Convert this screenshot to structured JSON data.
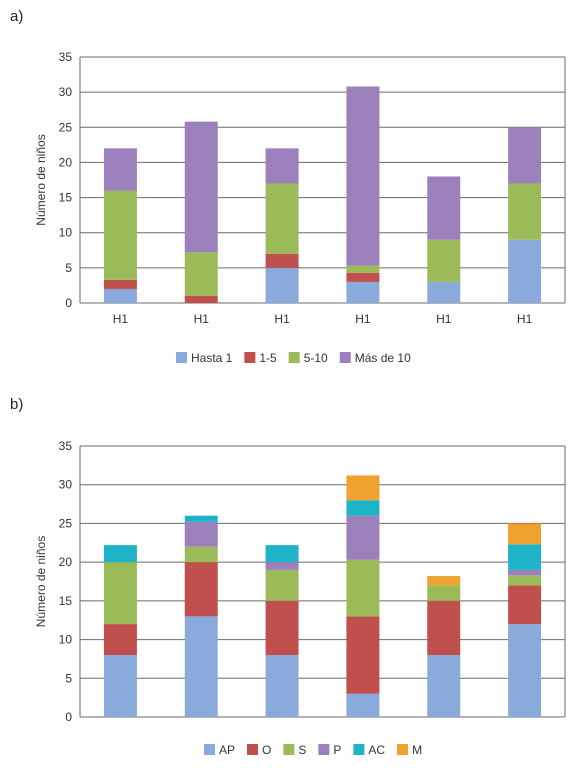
{
  "panels": {
    "a": "a)",
    "b": "b)"
  },
  "colors": {
    "blue": "#8aaadc",
    "red": "#c0504d",
    "green": "#9bbb59",
    "purple": "#9b80bc",
    "teal": "#1fb3c8",
    "orange": "#f0a22e"
  },
  "chart_data": [
    {
      "type": "bar",
      "stacked": true,
      "panel": "a)",
      "categories": [
        "H1",
        "H1",
        "H1",
        "H1",
        "H1",
        "H1"
      ],
      "ylabel": "Número de niños",
      "ylim": [
        0,
        35
      ],
      "yticks": [
        0,
        5,
        10,
        15,
        20,
        25,
        30,
        35
      ],
      "grid": true,
      "legend": "bottom",
      "series": [
        {
          "name": "Hasta 1",
          "color": "#8aaadc",
          "values": [
            2,
            0,
            5,
            3,
            3,
            9
          ]
        },
        {
          "name": "1-5",
          "color": "#c0504d",
          "values": [
            1.3,
            1,
            2,
            1.3,
            0,
            0
          ]
        },
        {
          "name": "5-10",
          "color": "#9bbb59",
          "values": [
            12.7,
            6.2,
            10,
            1,
            6,
            8
          ]
        },
        {
          "name": "Más de 10",
          "color": "#9b80bc",
          "values": [
            6,
            18.6,
            5,
            25.5,
            9,
            8
          ]
        }
      ]
    },
    {
      "type": "bar",
      "stacked": true,
      "panel": "b)",
      "categories": [
        "",
        "",
        "",
        "",
        "",
        ""
      ],
      "ylabel": "Número de niños",
      "ylim": [
        0,
        35
      ],
      "yticks": [
        0,
        5,
        10,
        15,
        20,
        25,
        30,
        35
      ],
      "grid": true,
      "legend": "bottom",
      "series": [
        {
          "name": "AP",
          "color": "#8aaadc",
          "values": [
            8,
            13,
            8,
            3,
            8,
            12
          ]
        },
        {
          "name": "O",
          "color": "#c0504d",
          "values": [
            4,
            7,
            7,
            10,
            7,
            5
          ]
        },
        {
          "name": "S",
          "color": "#9bbb59",
          "values": [
            8,
            2,
            4,
            7.3,
            2,
            1.3
          ]
        },
        {
          "name": "P",
          "color": "#9b80bc",
          "values": [
            0,
            3.2,
            1,
            5.7,
            0,
            0.7
          ]
        },
        {
          "name": "AC",
          "color": "#1fb3c8",
          "values": [
            2.2,
            0.8,
            2.2,
            2,
            0,
            3.3
          ]
        },
        {
          "name": "M",
          "color": "#f0a22e",
          "values": [
            0,
            0,
            0,
            3.2,
            1.2,
            2.7
          ]
        }
      ]
    }
  ]
}
